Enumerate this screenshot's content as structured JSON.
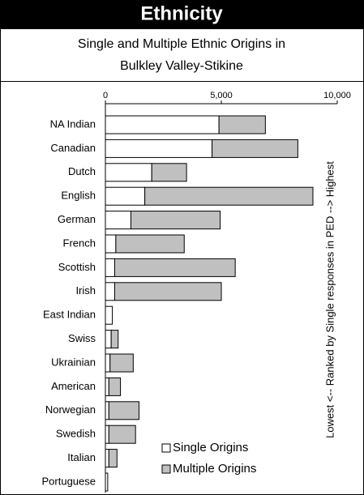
{
  "chart_data": {
    "type": "barh_stacked",
    "title": "Ethnicity",
    "subtitle": [
      "Single and Multiple Ethnic Origins in",
      "Bulkley Valley-Stikine"
    ],
    "side_label": "Lowest <-- Ranked by Single responses in PED --> Highest",
    "categories": [
      "NA Indian",
      "Canadian",
      "Dutch",
      "English",
      "German",
      "French",
      "Scottish",
      "Irish",
      "East Indian",
      "Swiss",
      "Ukrainian",
      "American",
      "Norwegian",
      "Swedish",
      "Italian",
      "Portuguese"
    ],
    "series": [
      {
        "name": "Single Origins",
        "color": "#ffffff",
        "values": [
          4900,
          4600,
          2000,
          1700,
          1100,
          450,
          400,
          400,
          300,
          250,
          200,
          150,
          150,
          150,
          150,
          100
        ]
      },
      {
        "name": "Multiple Origins",
        "color": "#c0c0c0",
        "values": [
          2000,
          3700,
          1500,
          7250,
          3850,
          2950,
          5200,
          4600,
          0,
          300,
          1000,
          500,
          1300,
          1150,
          350,
          0
        ]
      }
    ],
    "xlim": [
      0,
      10000
    ],
    "xticks": [
      0,
      {
        "value": 5000,
        "label": "5,000"
      },
      {
        "value": 10000,
        "label": "10,000"
      }
    ]
  }
}
